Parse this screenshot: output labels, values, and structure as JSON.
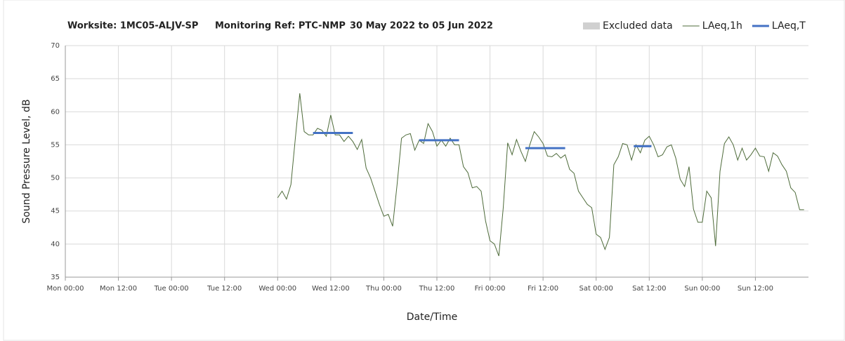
{
  "chart_data": {
    "type": "line",
    "title_parts": [
      "Worksite: 1MC05-ALJV-SP",
      "Monitoring Ref: PTC-NMP",
      "30 May 2022 to 05 Jun 2022"
    ],
    "xlabel": "Date/Time",
    "ylabel": "Sound Pressure Level, dB",
    "xlim": [
      0,
      168
    ],
    "ylim": [
      35,
      70
    ],
    "xticks": [
      {
        "value": 0,
        "label": "Mon 00:00"
      },
      {
        "value": 12,
        "label": "Mon 12:00"
      },
      {
        "value": 24,
        "label": "Tue 00:00"
      },
      {
        "value": 36,
        "label": "Tue 12:00"
      },
      {
        "value": 48,
        "label": "Wed 00:00"
      },
      {
        "value": 60,
        "label": "Wed 12:00"
      },
      {
        "value": 72,
        "label": "Thu 00:00"
      },
      {
        "value": 84,
        "label": "Thu 12:00"
      },
      {
        "value": 96,
        "label": "Fri 00:00"
      },
      {
        "value": 108,
        "label": "Fri 12:00"
      },
      {
        "value": 120,
        "label": "Sat 00:00"
      },
      {
        "value": 132,
        "label": "Sat 12:00"
      },
      {
        "value": 144,
        "label": "Sun 00:00"
      },
      {
        "value": 156,
        "label": "Sun 12:00"
      }
    ],
    "yticks": [
      35,
      40,
      45,
      50,
      55,
      60,
      65,
      70
    ],
    "grid": true,
    "legend": "top-right",
    "series": [
      {
        "name": "Excluded data",
        "color": "#d0d0d0",
        "style": "area",
        "x": [],
        "values": []
      },
      {
        "name": "LAeq,1h",
        "color": "#4e6b3a",
        "style": "line",
        "x": [
          48,
          49,
          50,
          51,
          52,
          53,
          54,
          55,
          56,
          57,
          58,
          59,
          60,
          61,
          62,
          63,
          64,
          65,
          66,
          67,
          68,
          69,
          70,
          71,
          72,
          73,
          74,
          75,
          76,
          77,
          78,
          79,
          80,
          81,
          82,
          83,
          84,
          85,
          86,
          87,
          88,
          89,
          90,
          91,
          92,
          93,
          94,
          95,
          96,
          97,
          98,
          99,
          100,
          101,
          102,
          103,
          104,
          105,
          106,
          107,
          108,
          109,
          110,
          111,
          112,
          113,
          114,
          115,
          116,
          117,
          118,
          119,
          120,
          121,
          122,
          123,
          124,
          125,
          126,
          127,
          128,
          129,
          130,
          131,
          132,
          133,
          134,
          135,
          136,
          137,
          138,
          139,
          140,
          141,
          142,
          143,
          144,
          145,
          146,
          147,
          148,
          149,
          150,
          151,
          152,
          153,
          154,
          155,
          156,
          157,
          158,
          159,
          160,
          161,
          162,
          163,
          164,
          165,
          166,
          167
        ],
        "values": [
          47,
          48,
          46.8,
          49,
          56,
          62.8,
          57,
          56.5,
          56.5,
          57.5,
          57.2,
          56.3,
          59.5,
          56.5,
          56.5,
          55.5,
          56.3,
          55.5,
          54.3,
          55.8,
          51.5,
          50,
          48,
          46,
          44.2,
          44.5,
          42.7,
          49,
          56,
          56.5,
          56.7,
          54.2,
          55.7,
          55.2,
          58.2,
          57,
          54.8,
          55.7,
          54.8,
          56,
          55,
          55,
          51.7,
          50.8,
          48.5,
          48.7,
          48,
          43.5,
          40.5,
          40,
          38.2,
          45.5,
          55.3,
          53.5,
          55.8,
          54,
          52.5,
          55,
          57,
          56.2,
          55.2,
          53.3,
          53.2,
          53.7,
          53,
          53.5,
          51.3,
          50.7,
          48,
          47,
          46,
          45.5,
          41.5,
          41,
          39.2,
          41,
          52,
          53.2,
          55.2,
          55,
          52.7,
          55,
          53.8,
          55.7,
          56.3,
          55,
          53.2,
          53.5,
          54.7,
          55,
          53,
          49.8,
          48.7,
          51.7,
          45.3,
          43.3,
          43.3,
          48,
          47,
          39.7,
          51,
          55.2,
          56.2,
          55,
          52.7,
          54.5,
          52.7,
          53.5,
          54.5,
          53.3,
          53.2,
          51,
          53.8,
          53.3,
          52,
          51,
          48.5,
          47.8,
          45.2,
          45.2
        ]
      },
      {
        "name": "LAeq,T",
        "color": "#4472c4",
        "style": "segments",
        "segments": [
          {
            "x": [
              56,
              65
            ],
            "values": [
              56.8,
              56.8
            ]
          },
          {
            "x": [
              80,
              89
            ],
            "values": [
              55.7,
              55.7
            ]
          },
          {
            "x": [
              104,
              113
            ],
            "values": [
              54.5,
              54.5
            ]
          },
          {
            "x": [
              128.5,
              132.5
            ],
            "values": [
              54.8,
              54.8
            ]
          }
        ]
      }
    ]
  }
}
